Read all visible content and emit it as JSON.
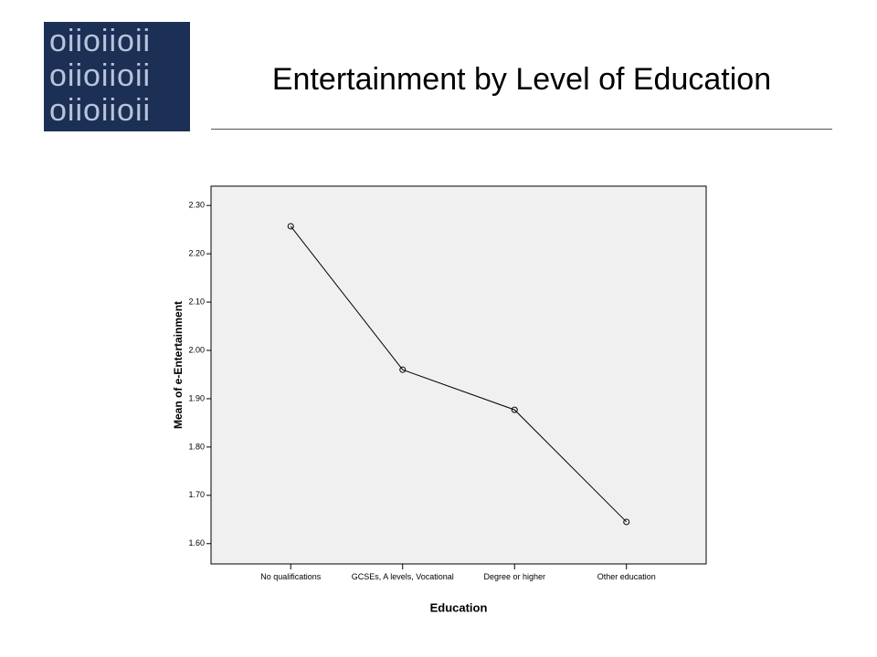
{
  "logo_text": [
    "oiioiioii",
    "oiioiioii",
    "oiioiioii"
  ],
  "chart_data": {
    "type": "line",
    "title": "Entertainment by Level of Education",
    "x_label": "Education",
    "y_label": "Mean of e-Entertainment",
    "categories": [
      "No qualifications",
      "GCSEs, A levels, Vocational",
      "Degree or higher",
      "Other education"
    ],
    "values": [
      2.257,
      1.96,
      1.877,
      1.645
    ],
    "color": "#000000",
    "ylim": [
      1.558,
      2.34
    ],
    "yticks": [
      {
        "value": 1.6,
        "label": "1.60"
      },
      {
        "value": 1.7,
        "label": "1.70"
      },
      {
        "value": 1.8,
        "label": "1.80"
      },
      {
        "value": 1.9,
        "label": "1.90"
      },
      {
        "value": 2.0,
        "label": "2.00"
      },
      {
        "value": 2.1,
        "label": "2.10"
      },
      {
        "value": 2.2,
        "label": "2.20"
      },
      {
        "value": 2.3,
        "label": "2.30"
      }
    ],
    "grid": false
  }
}
